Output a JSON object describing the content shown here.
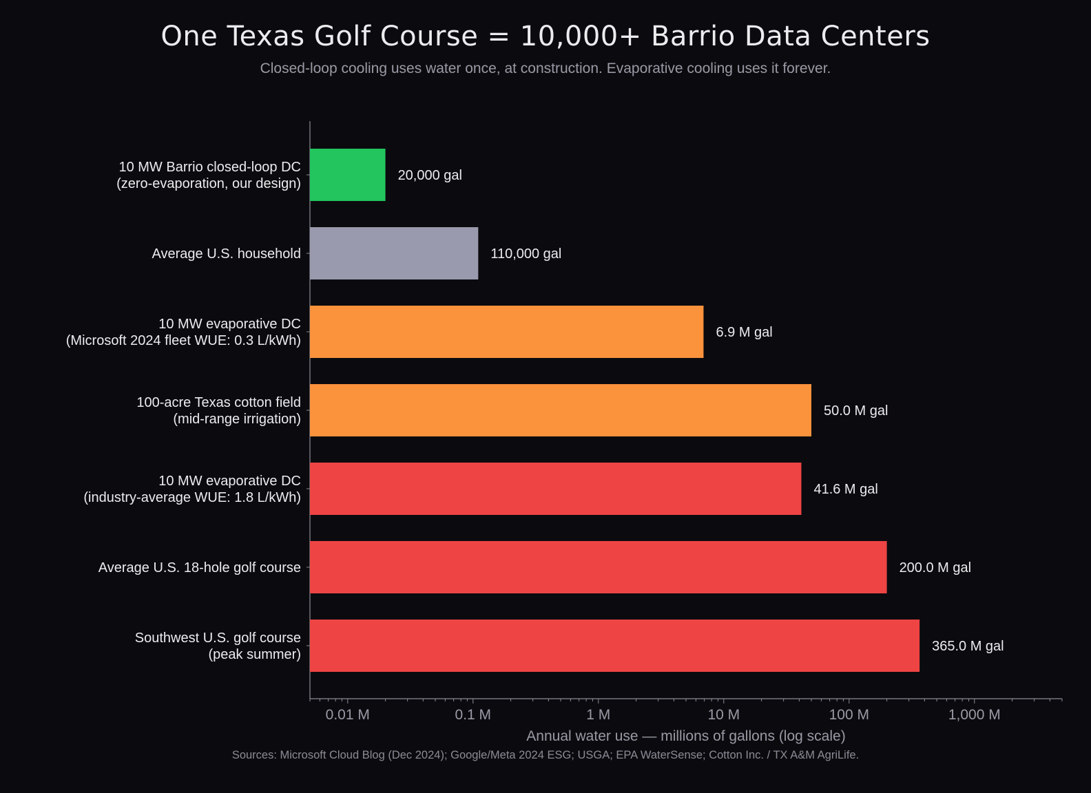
{
  "chart_data": {
    "type": "bar",
    "orientation": "horizontal",
    "title": "One Texas Golf Course = 10,000+ Barrio Data Centers",
    "subtitle": "Closed-loop cooling uses water once, at construction. Evaporative cooling uses it forever.",
    "xlabel": "Annual water use — millions of gallons (log scale)",
    "ylabel": "",
    "x_scale": "log",
    "xlim": [
      0.005,
      5000
    ],
    "grid": false,
    "source": "Sources: Microsoft Cloud Blog (Dec 2024); Google/Meta 2024 ESG; USGA; EPA WaterSense; Cotton Inc. / TX A&M AgriLife.",
    "ticks": [
      {
        "value": 0.01,
        "label": "0.01 M"
      },
      {
        "value": 0.1,
        "label": "0.1 M"
      },
      {
        "value": 1,
        "label": "1 M"
      },
      {
        "value": 10,
        "label": "10 M"
      },
      {
        "value": 100,
        "label": "100 M"
      },
      {
        "value": 1000,
        "label": "1,000 M"
      }
    ],
    "bars": [
      {
        "label_lines": [
          "10 MW Barrio closed-loop DC",
          "(zero-evaporation, our design)"
        ],
        "value": 0.02,
        "value_label": "20,000 gal",
        "color": "#22c55e"
      },
      {
        "label_lines": [
          "Average U.S. household"
        ],
        "value": 0.11,
        "value_label": "110,000 gal",
        "color": "#9a9aae"
      },
      {
        "label_lines": [
          "10 MW evaporative DC",
          "(Microsoft 2024 fleet WUE: 0.3 L/kWh)"
        ],
        "value": 6.9,
        "value_label": "6.9 M gal",
        "color": "#fb923c"
      },
      {
        "label_lines": [
          "100-acre Texas cotton field",
          "(mid-range irrigation)"
        ],
        "value": 50.0,
        "value_label": "50.0 M gal",
        "color": "#fb923c"
      },
      {
        "label_lines": [
          "10 MW evaporative DC",
          "(industry-average WUE: 1.8 L/kWh)"
        ],
        "value": 41.6,
        "value_label": "41.6 M gal",
        "color": "#ef4444"
      },
      {
        "label_lines": [
          "Average U.S. 18-hole golf course"
        ],
        "value": 200.0,
        "value_label": "200.0 M gal",
        "color": "#ef4444"
      },
      {
        "label_lines": [
          "Southwest U.S. golf course",
          "(peak summer)"
        ],
        "value": 365.0,
        "value_label": "365.0 M gal",
        "color": "#ef4444"
      }
    ],
    "colors": {
      "background": "#0b0b0f",
      "axis": "#8b8b96"
    }
  }
}
